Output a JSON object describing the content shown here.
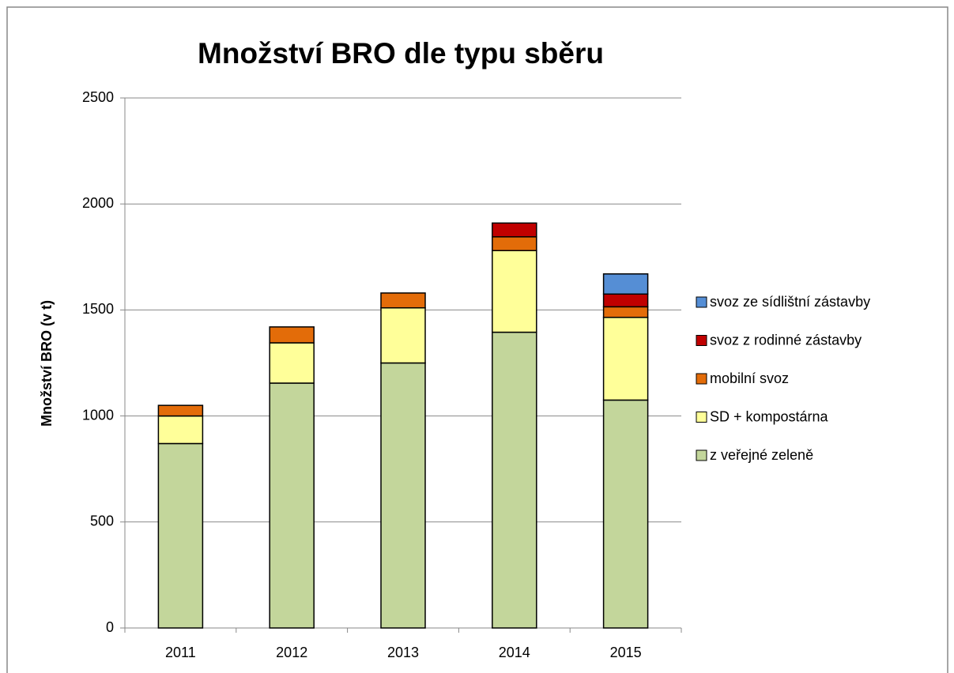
{
  "chart_data": {
    "type": "stacked_bar",
    "title": "Množství BRO dle typu sběru",
    "y_label": "Množství BRO (v t)",
    "categories": [
      "2011",
      "2012",
      "2013",
      "2014",
      "2015"
    ],
    "series": [
      {
        "name": "z veřejné zeleně",
        "color": "#c3d69b",
        "values": [
          870,
          1155,
          1250,
          1395,
          1075
        ]
      },
      {
        "name": "SD + kompostárna",
        "color": "#ffff99",
        "values": [
          130,
          190,
          260,
          385,
          390
        ]
      },
      {
        "name": "mobilní svoz",
        "color": "#e36c09",
        "values": [
          50,
          75,
          70,
          65,
          50
        ]
      },
      {
        "name": "svoz z rodinné zástavby",
        "color": "#c00000",
        "values": [
          null,
          null,
          null,
          65,
          60
        ]
      },
      {
        "name": "svoz ze sídlištní zástavby",
        "color": "#558ed5",
        "values": [
          null,
          null,
          null,
          null,
          95
        ]
      }
    ],
    "ylim": [
      0,
      2500
    ],
    "yticks": [
      0,
      500,
      1000,
      1500,
      2000,
      2500
    ],
    "grid": true,
    "legend": "right"
  }
}
